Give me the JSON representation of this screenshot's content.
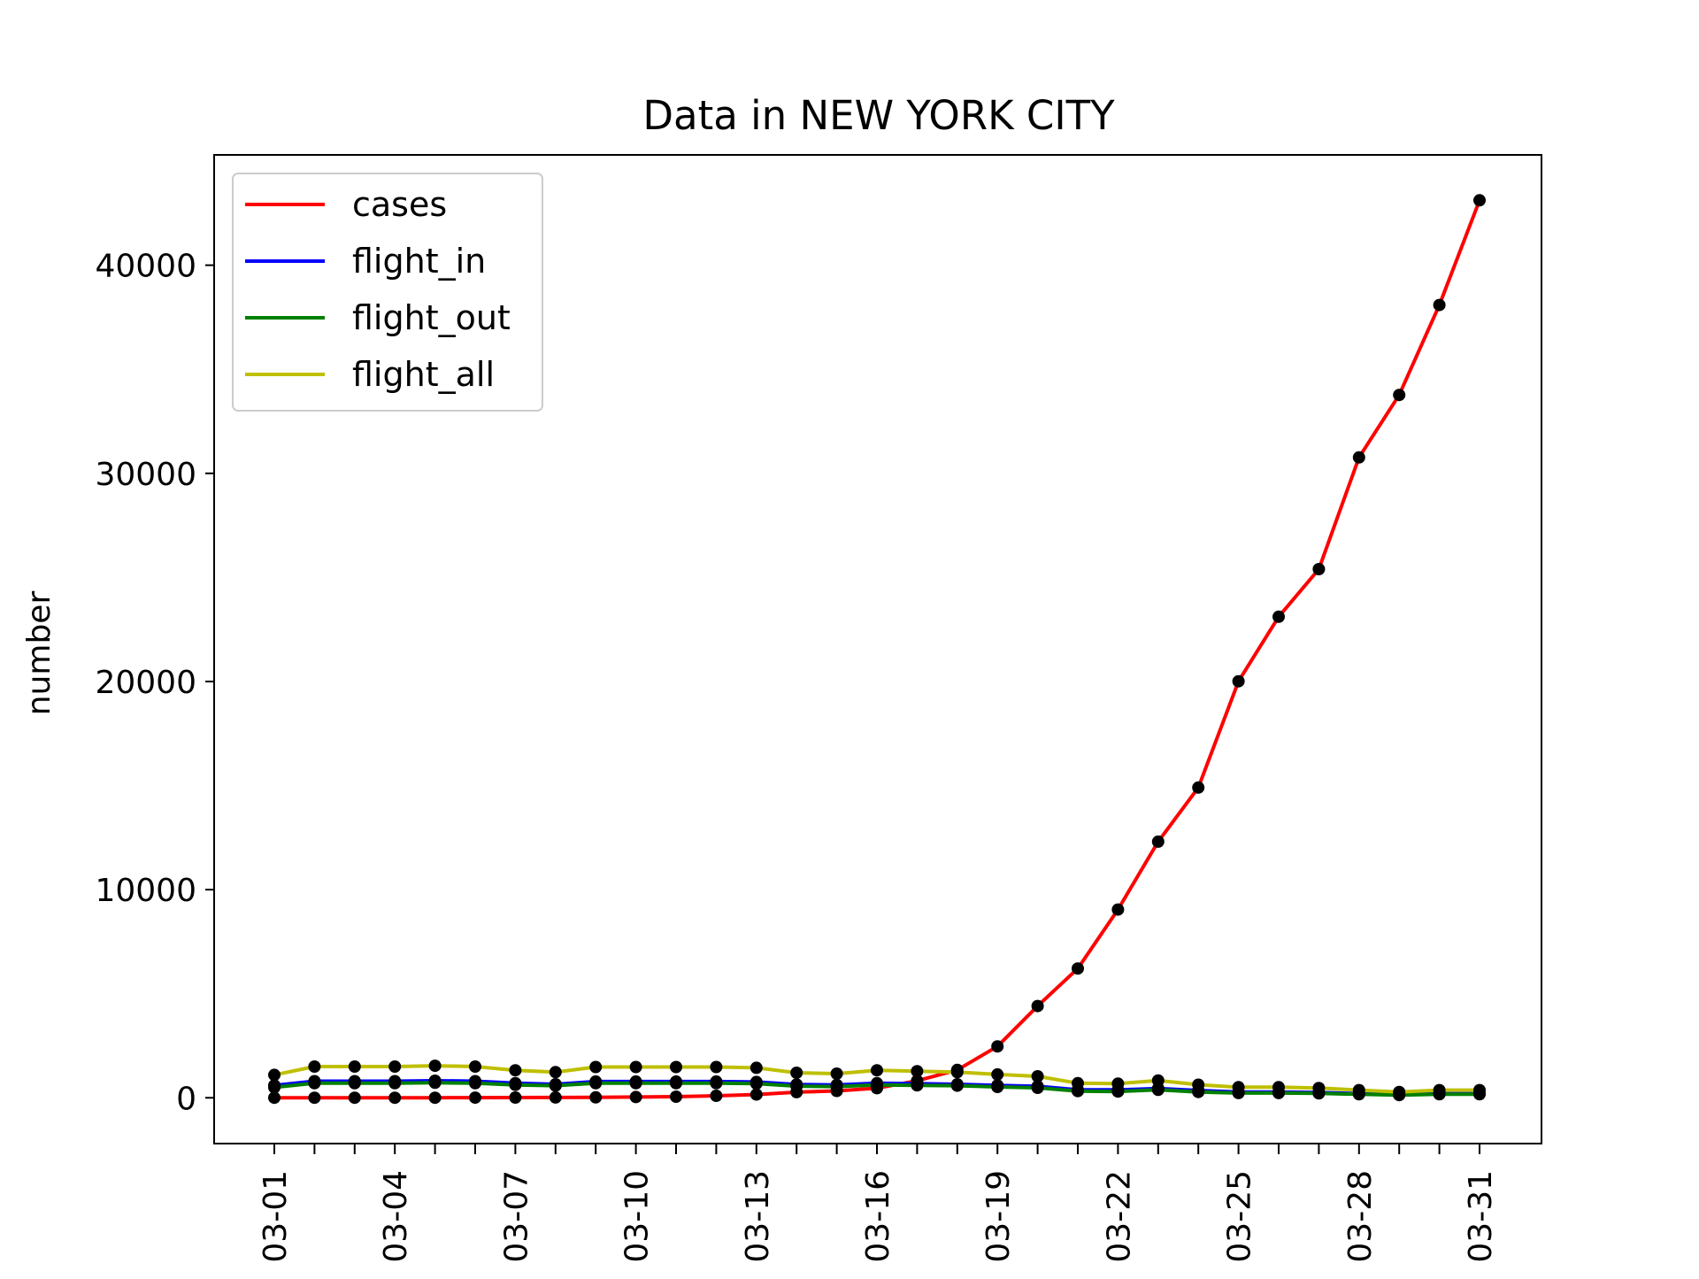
{
  "chart_data": {
    "type": "line",
    "title": "Data in NEW YORK CITY",
    "xlabel": "",
    "ylabel": "number",
    "x": [
      "03-01",
      "03-02",
      "03-03",
      "03-04",
      "03-05",
      "03-06",
      "03-07",
      "03-08",
      "03-09",
      "03-10",
      "03-11",
      "03-12",
      "03-13",
      "03-14",
      "03-15",
      "03-16",
      "03-17",
      "03-18",
      "03-19",
      "03-20",
      "03-21",
      "03-22",
      "03-23",
      "03-24",
      "03-25",
      "03-26",
      "03-27",
      "03-28",
      "03-29",
      "03-30",
      "03-31"
    ],
    "x_tick_labels": [
      "03-01",
      "03-04",
      "03-07",
      "03-10",
      "03-13",
      "03-16",
      "03-19",
      "03-22",
      "03-25",
      "03-28",
      "03-31"
    ],
    "ylim": [
      -2200,
      45300
    ],
    "y_ticks": [
      0,
      10000,
      20000,
      30000,
      40000
    ],
    "grid": false,
    "legend_position": "upper-left",
    "marker_color": "#000000",
    "series": [
      {
        "name": "cases",
        "color": "#ff0000",
        "values": [
          1,
          1,
          2,
          2,
          4,
          5,
          12,
          14,
          20,
          36,
          52,
          95,
          154,
          269,
          329,
          463,
          814,
          1339,
          2469,
          4408,
          6211,
          9045,
          12305,
          14904,
          20011,
          23112,
          25398,
          30765,
          33768,
          38087,
          43119
        ]
      },
      {
        "name": "flight_in",
        "color": "#0000ff",
        "values": [
          600,
          800,
          800,
          800,
          820,
          800,
          700,
          650,
          780,
          780,
          780,
          780,
          760,
          640,
          620,
          700,
          680,
          650,
          600,
          550,
          380,
          380,
          450,
          350,
          280,
          280,
          260,
          200,
          150,
          200,
          200
        ]
      },
      {
        "name": "flight_out",
        "color": "#008000",
        "values": [
          500,
          700,
          700,
          700,
          720,
          700,
          620,
          580,
          700,
          700,
          700,
          700,
          680,
          560,
          540,
          620,
          600,
          580,
          520,
          480,
          320,
          300,
          380,
          280,
          230,
          230,
          210,
          170,
          130,
          170,
          170
        ]
      },
      {
        "name": "flight_all",
        "color": "#bfbf00",
        "values": [
          1100,
          1500,
          1500,
          1500,
          1540,
          1500,
          1320,
          1230,
          1480,
          1480,
          1480,
          1480,
          1440,
          1200,
          1160,
          1320,
          1280,
          1230,
          1120,
          1030,
          700,
          680,
          830,
          630,
          510,
          510,
          470,
          370,
          280,
          370,
          370
        ]
      }
    ]
  }
}
